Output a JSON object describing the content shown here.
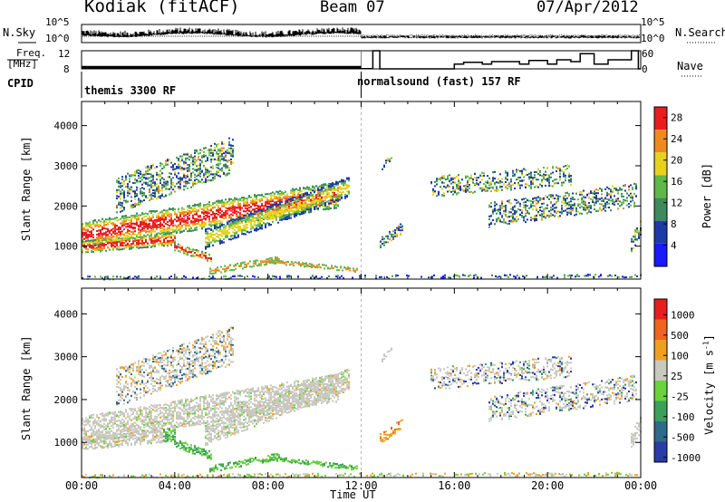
{
  "header": {
    "station": "Kodiak (fitACF)",
    "beam": "Beam 07",
    "date": "07/Apr/2012"
  },
  "left_labels": {
    "nsky": "N.Sky",
    "freq_line1": "Freq.",
    "freq_line2": "[MHz]",
    "cpid": "CPID"
  },
  "right_labels": {
    "nsearch": "N.Search",
    "nave": "Nave"
  },
  "cpid_segments": [
    {
      "label": "themis 3300 RF"
    },
    {
      "label": "normalsound (fast) 157 RF"
    }
  ],
  "chart_data": [
    {
      "type": "line",
      "name": "noise",
      "ylim": [
        1,
        100000
      ],
      "y_scale": "log",
      "yticks_left": [
        "10^5",
        "10^0"
      ],
      "yticks_right": [
        "10^5",
        "10^0"
      ]
    },
    {
      "type": "line",
      "name": "frequency and nave",
      "yticks_left": [
        "12",
        "8"
      ],
      "yticks_right": [
        "60",
        "0"
      ],
      "ylim_left": [
        8,
        12
      ],
      "ylim_right": [
        0,
        60
      ],
      "freq_x": [
        0,
        12,
        12,
        24
      ],
      "freq_y": [
        8.0,
        8.0,
        12.0,
        12.0
      ],
      "nave_x": [
        0,
        12,
        12.5,
        12.8,
        16,
        16.4,
        17.2,
        17.6,
        18.8,
        19.2,
        20,
        20.4,
        21,
        21.4,
        22,
        22.6,
        23.6,
        23.9,
        24
      ],
      "nave_y": [
        1,
        1,
        60,
        0,
        16,
        22,
        16,
        24,
        16,
        28,
        16,
        30,
        24,
        50,
        16,
        30,
        60,
        0,
        0
      ]
    },
    {
      "type": "heatmap",
      "name": "power",
      "xlabel": "",
      "ylabel": "Slant Range [km]",
      "xlim": [
        0,
        24
      ],
      "ylim": [
        180,
        4600
      ],
      "yticks": [
        1000,
        2000,
        3000,
        4000
      ],
      "colorbar_label": "Power [dB]",
      "colorbar_ticks": [
        4,
        8,
        12,
        16,
        20,
        24,
        28
      ],
      "colorbar_range": [
        0,
        30
      ],
      "colors": [
        "#1a1aff",
        "#1e3aa8",
        "#3d8a5c",
        "#5fb84a",
        "#e6d21e",
        "#f08a1e",
        "#e81e1e"
      ]
    },
    {
      "type": "heatmap",
      "name": "velocity",
      "xlabel": "Time UT",
      "ylabel": "Slant Range [km]",
      "xlim": [
        0,
        24
      ],
      "ylim": [
        180,
        4600
      ],
      "xticks": [
        "00:00",
        "04:00",
        "08:00",
        "12:00",
        "16:00",
        "20:00",
        "00:00"
      ],
      "yticks": [
        1000,
        2000,
        3000,
        4000
      ],
      "colorbar_label": "Velocity [m s",
      "colorbar_label_sup": "-1",
      "colorbar_ticks": [
        "1000",
        "500",
        "100",
        "25",
        "-25",
        "-100",
        "-500",
        "-1000"
      ],
      "colors": [
        "#2a3ca8",
        "#2f6a8a",
        "#3aa05a",
        "#6ad23a",
        "#c8c8c0",
        "#f0a01e",
        "#f0641e",
        "#e81e1e"
      ]
    }
  ]
}
